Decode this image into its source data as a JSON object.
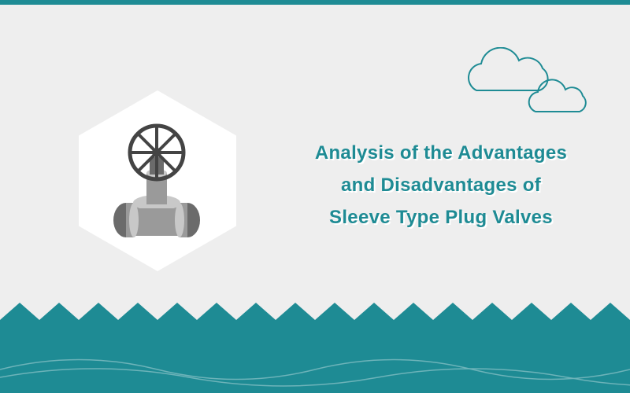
{
  "canvas": {
    "background_color": "#eeeeee",
    "top_strip_color": "#1e8b94"
  },
  "title": {
    "line1": "Analysis of the Advantages",
    "line2": "and Disadvantages of",
    "line3": "Sleeve Type Plug Valves",
    "text_color": "#1e8b94",
    "shadow_color": "#ffffff",
    "fontsize": 24
  },
  "hexagon": {
    "fill": "#ffffff",
    "valve_body_color": "#9a9a9a",
    "valve_dark": "#6b6b6b",
    "valve_light": "#c8c8c8",
    "wheel_color": "#444444"
  },
  "clouds": {
    "stroke_color": "#1e8b94",
    "stroke_width": 2
  },
  "zigzag": {
    "fill": "#1e8b94",
    "tooth_count": 16,
    "tooth_height": 22,
    "band_height": 115
  },
  "wave": {
    "stroke": "#ffffff",
    "opacity": 0.35
  }
}
